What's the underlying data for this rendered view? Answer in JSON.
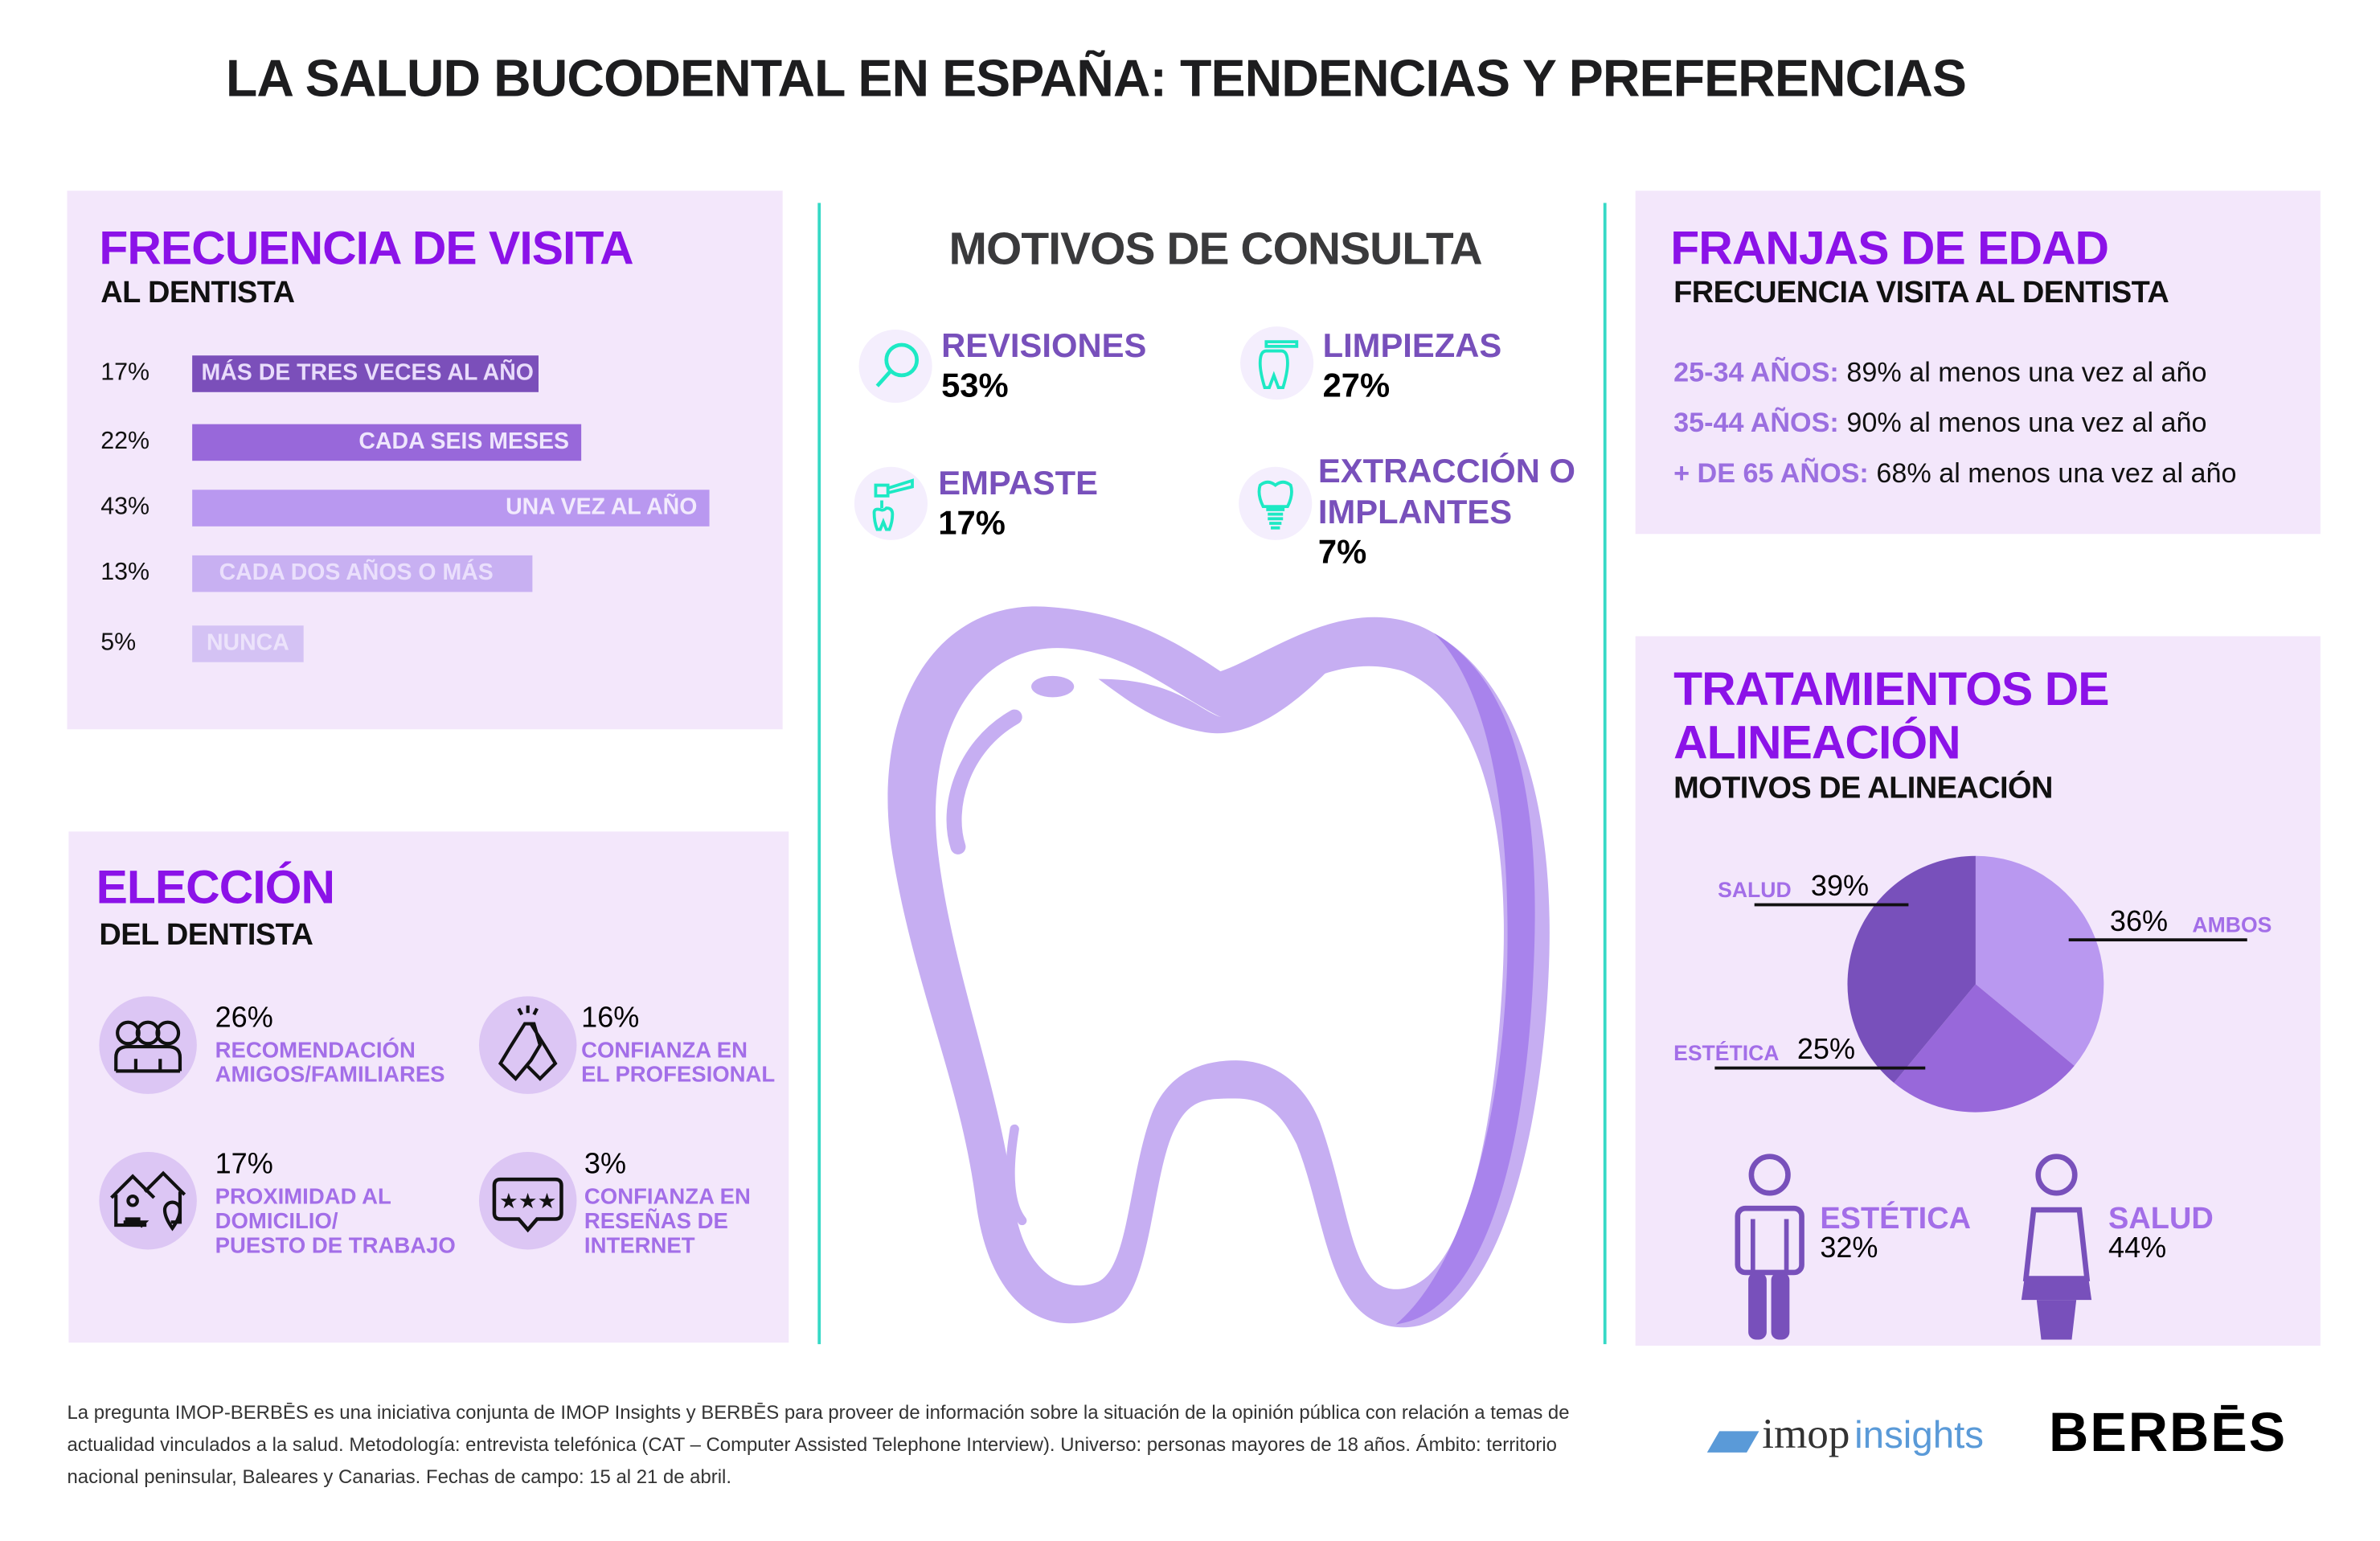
{
  "title": "LA SALUD BUCODENTAL EN ESPAÑA: TENDENCIAS Y PREFERENCIAS",
  "frecuencia": {
    "title": "FRECUENCIA DE VISITA",
    "subtitle": "AL DENTISTA",
    "rows": [
      {
        "pct": "17%",
        "label": "MÁS DE TRES VECES AL AÑO",
        "value": 17,
        "color": "#7b4fba"
      },
      {
        "pct": "22%",
        "label": "CADA SEIS MESES",
        "value": 22,
        "color": "#9868da"
      },
      {
        "pct": "43%",
        "label": "UNA VEZ AL AÑO",
        "value": 43,
        "color": "#b998f0"
      },
      {
        "pct": "13%",
        "label": "CADA DOS AÑOS O MÁS",
        "value": 13,
        "color": "#c8b0f2"
      },
      {
        "pct": "5%",
        "label": "NUNCA",
        "value": 5,
        "color": "#d4c2f4"
      }
    ]
  },
  "eleccion": {
    "title": "ELECCIÓN",
    "subtitle": "DEL DENTISTA",
    "items": [
      {
        "pct": "26%",
        "line1": "RECOMENDACIÓN",
        "line2": "AMIGOS/FAMILIARES",
        "line3": "",
        "icon": "people-group-icon"
      },
      {
        "pct": "16%",
        "line1": "CONFIANZA EN",
        "line2": "EL PROFESIONAL",
        "line3": "",
        "icon": "handshake-icon"
      },
      {
        "pct": "17%",
        "line1": "PROXIMIDAD AL",
        "line2": "DOMICILIO/",
        "line3": "PUESTO DE TRABAJO",
        "icon": "house-location-icon"
      },
      {
        "pct": "3%",
        "line1": "CONFIANZA EN",
        "line2": "RESEÑAS DE",
        "line3": "INTERNET",
        "icon": "star-review-icon"
      }
    ]
  },
  "motivos": {
    "title": "MOTIVOS DE CONSULTA",
    "items": [
      {
        "label": "REVISIONES",
        "pct": "53%",
        "icon": "magnifier-icon"
      },
      {
        "label": "LIMPIEZAS",
        "pct": "27%",
        "icon": "toothbrush-icon"
      },
      {
        "label": "EMPASTE",
        "pct": "17%",
        "icon": "dental-drill-icon"
      },
      {
        "label": "EXTRACCIÓN O",
        "label2": "IMPLANTES",
        "pct": "7%",
        "icon": "dental-implant-icon"
      }
    ]
  },
  "franjas": {
    "title": "FRANJAS DE EDAD",
    "subtitle": "FRECUENCIA VISITA AL DENTISTA",
    "rows": [
      {
        "label": "25-34 AÑOS:",
        "text": "89% al menos una vez al año"
      },
      {
        "label": "35-44 AÑOS:",
        "text": "90% al menos una vez al año"
      },
      {
        "label": "+ DE 65 AÑOS:",
        "text": "68% al menos una vez al año"
      }
    ]
  },
  "alineacion": {
    "title1": "TRATAMIENTOS DE",
    "title2": "ALINEACIÓN",
    "subtitle": "MOTIVOS DE ALINEACIÓN",
    "chart_data": {
      "type": "pie",
      "slices": [
        {
          "label": "AMBOS",
          "pct": "36%",
          "value": 36,
          "color": "#b998f0"
        },
        {
          "label": "ESTÉTICA",
          "pct": "25%",
          "value": 25,
          "color": "#9868da"
        },
        {
          "label": "SALUD",
          "pct": "39%",
          "value": 39,
          "color": "#7850bb"
        }
      ]
    },
    "men": {
      "label": "ESTÉTICA",
      "pct": "32%"
    },
    "women": {
      "label": "SALUD",
      "pct": "44%"
    }
  },
  "footer": "La pregunta IMOP-BERBĒS es una iniciativa conjunta de IMOP Insights y BERBĒS para proveer de información sobre la situación de la opinión pública con relación a temas de actualidad vinculados a la salud. Metodología: entrevista telefónica (CAT – Computer Assisted Telephone Interview). Universo: personas mayores de 18 años. Ámbito: territorio nacional peninsular, Baleares y Canarias. Fechas de campo: 15 al 21 de abril.",
  "logos": {
    "imop1": "imop",
    "imop2": "insights",
    "berbes": "BERBĒS"
  },
  "colors": {
    "accent": "#8b12e8",
    "teal": "#36d9c6",
    "panel": "#f3e7fb"
  }
}
